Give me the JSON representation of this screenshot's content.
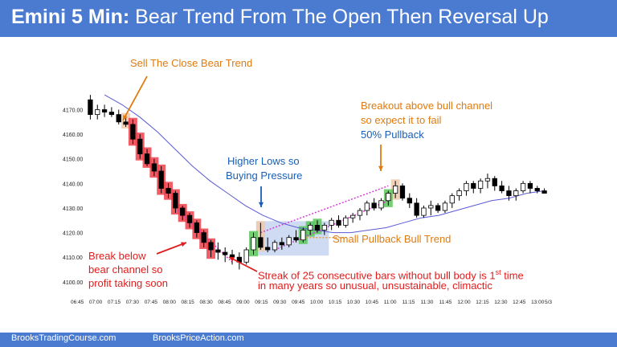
{
  "title": {
    "bold": "Emini 5 Min:",
    "rest": " Bear Trend From The Open Then Reversal Up"
  },
  "footer": {
    "left": "BrooksTradingCourse.com",
    "right": "BrooksPriceAction.com"
  },
  "annotations": {
    "sell_close": "Sell The Close Bear Trend",
    "breakout_1": "Breakout above bull channel",
    "breakout_2": "so expect it to fail",
    "pullback_50": "50% Pullback",
    "higher_lows_1": "Higher Lows so",
    "higher_lows_2": "Buying Pressure",
    "break_below_1": "Break below",
    "break_below_2": "bear channel so",
    "break_below_3": "profit taking soon",
    "small_pullback": "Small Pullback Bull Trend",
    "streak_1a": "Streak of 25 consecutive bars without bull body is 1",
    "streak_1sup": "st",
    "streak_1b": " time",
    "streak_2": "in many years so unusual, unsustainable, climactic"
  },
  "colors": {
    "header": "#4a7bd0",
    "orange_text": "#e07b10",
    "blue_text": "#1a5fb4",
    "red_text": "#e11c1c",
    "bear_highlight": "#f0404a",
    "bull_highlight": "#5cc75c",
    "tan_highlight": "#f2c9a8",
    "blue_highlight": "#c9d7f2",
    "ema_line": "#5a5ad6",
    "channel_line": "#d63ad6"
  },
  "chart_data": {
    "type": "candlestick",
    "title": "Emini 5 Min",
    "ylim": [
      4097,
      4178
    ],
    "y_ticks": [
      "4100.00",
      "4110.00",
      "4120.00",
      "4130.00",
      "4140.00",
      "4150.00",
      "4160.00",
      "4170.00"
    ],
    "x_ticks": [
      "06:45",
      "07:00",
      "07:15",
      "07:30",
      "07:45",
      "08:00",
      "08:15",
      "08:30",
      "08:45",
      "09:00",
      "09:15",
      "09:30",
      "09:45",
      "10:00",
      "10:15",
      "10:30",
      "10:45",
      "11:00",
      "11:15",
      "11:30",
      "11:45",
      "12:00",
      "12:15",
      "12:30",
      "12:45",
      "13:00",
      "5/3"
    ],
    "bars": [
      [
        4174,
        4176,
        4166,
        4168
      ],
      [
        4168,
        4172,
        4166,
        4170
      ],
      [
        4170,
        4172,
        4167,
        4169
      ],
      [
        4169,
        4171,
        4167,
        4168
      ],
      [
        4168,
        4170,
        4164,
        4165
      ],
      [
        4165,
        4168,
        4163,
        4164
      ],
      [
        4164,
        4166,
        4156,
        4158
      ],
      [
        4158,
        4160,
        4150,
        4152
      ],
      [
        4152,
        4154,
        4147,
        4148
      ],
      [
        4148,
        4150,
        4143,
        4145
      ],
      [
        4145,
        4147,
        4136,
        4138
      ],
      [
        4138,
        4140,
        4134,
        4136
      ],
      [
        4136,
        4137,
        4128,
        4130
      ],
      [
        4130,
        4131,
        4125,
        4127
      ],
      [
        4127,
        4128,
        4122,
        4124
      ],
      [
        4124,
        4125,
        4118,
        4120
      ],
      [
        4120,
        4121,
        4114,
        4116
      ],
      [
        4116,
        4117,
        4110,
        4113
      ],
      [
        4113,
        4116,
        4109,
        4112
      ],
      [
        4112,
        4114,
        4108,
        4111
      ],
      [
        4111,
        4113,
        4107,
        4110
      ],
      [
        4110,
        4112,
        4105,
        4108
      ],
      [
        4108,
        4114,
        4107,
        4113
      ],
      [
        4113,
        4120,
        4111,
        4118
      ],
      [
        4118,
        4124,
        4113,
        4114
      ],
      [
        4114,
        4118,
        4112,
        4113
      ],
      [
        4113,
        4117,
        4112,
        4116
      ],
      [
        4116,
        4118,
        4113,
        4115
      ],
      [
        4115,
        4119,
        4114,
        4118
      ],
      [
        4118,
        4121,
        4116,
        4117
      ],
      [
        4117,
        4122,
        4116,
        4121
      ],
      [
        4121,
        4124,
        4119,
        4123
      ],
      [
        4123,
        4125,
        4120,
        4121
      ],
      [
        4121,
        4124,
        4119,
        4123
      ],
      [
        4123,
        4126,
        4121,
        4125
      ],
      [
        4125,
        4127,
        4122,
        4123
      ],
      [
        4123,
        4127,
        4122,
        4126
      ],
      [
        4126,
        4128,
        4124,
        4127
      ],
      [
        4127,
        4130,
        4125,
        4129
      ],
      [
        4129,
        4133,
        4127,
        4132
      ],
      [
        4132,
        4134,
        4129,
        4130
      ],
      [
        4130,
        4134,
        4129,
        4133
      ],
      [
        4133,
        4137,
        4131,
        4136
      ],
      [
        4136,
        4141,
        4134,
        4139
      ],
      [
        4139,
        4140,
        4133,
        4134
      ],
      [
        4134,
        4136,
        4130,
        4132
      ],
      [
        4132,
        4134,
        4126,
        4127
      ],
      [
        4127,
        4131,
        4126,
        4130
      ],
      [
        4130,
        4133,
        4127,
        4131
      ],
      [
        4131,
        4132,
        4128,
        4129
      ],
      [
        4129,
        4133,
        4128,
        4132
      ],
      [
        4132,
        4136,
        4130,
        4135
      ],
      [
        4135,
        4138,
        4133,
        4137
      ],
      [
        4137,
        4141,
        4135,
        4140
      ],
      [
        4140,
        4141,
        4136,
        4138
      ],
      [
        4138,
        4142,
        4136,
        4141
      ],
      [
        4141,
        4144,
        4138,
        4142
      ],
      [
        4142,
        4143,
        4137,
        4139
      ],
      [
        4139,
        4141,
        4136,
        4137
      ],
      [
        4137,
        4139,
        4133,
        4135
      ],
      [
        4135,
        4138,
        4133,
        4137
      ],
      [
        4137,
        4141,
        4136,
        4140
      ],
      [
        4140,
        4141,
        4136,
        4138
      ],
      [
        4138,
        4139,
        4136,
        4137
      ],
      [
        4137,
        4138,
        4136,
        4136
      ]
    ],
    "ema": [
      4176,
      4172,
      4167,
      4161,
      4154,
      4147,
      4141,
      4136,
      4131,
      4127,
      4124,
      4122,
      4121,
      4120,
      4120,
      4121,
      4122,
      4124,
      4126,
      4127,
      4129,
      4131,
      4133,
      4134,
      4136,
      4137
    ],
    "bear_highlight_bars": [
      6,
      7,
      8,
      9,
      10,
      11,
      12,
      13,
      14,
      15,
      16,
      17
    ],
    "bull_highlight_bars": [
      23,
      30,
      31,
      32,
      42
    ],
    "tan_highlight_bars": [
      5,
      24,
      43
    ]
  }
}
